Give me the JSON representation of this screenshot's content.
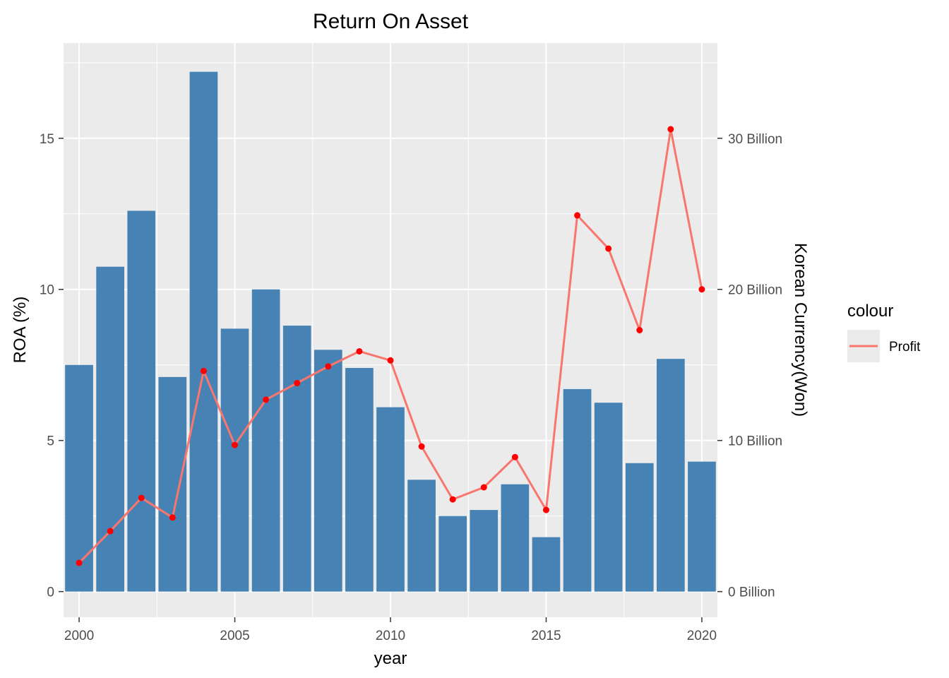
{
  "chart_data": {
    "type": "bar",
    "title": "Return On Asset",
    "xlabel": "year",
    "ylabel": "ROA (%)",
    "y2label": "Korean Currency(Won)",
    "xlim": [
      1999.5,
      2020.5
    ],
    "ylim": [
      -0.85,
      18.15
    ],
    "x_ticks": [
      2000,
      2005,
      2010,
      2015,
      2020
    ],
    "y_ticks": [
      0,
      5,
      10,
      15
    ],
    "y2_ticks": [
      0,
      10,
      20,
      30
    ],
    "y2_tick_labels": [
      "0 Billion",
      "10 Billion",
      "20 Billion",
      "30 Billion"
    ],
    "years": [
      2000,
      2001,
      2002,
      2003,
      2004,
      2005,
      2006,
      2007,
      2008,
      2009,
      2010,
      2011,
      2012,
      2013,
      2014,
      2015,
      2016,
      2017,
      2018,
      2019,
      2020
    ],
    "roa": [
      7.5,
      10.75,
      12.6,
      7.1,
      17.2,
      8.7,
      10.0,
      8.8,
      8.0,
      7.4,
      6.1,
      3.7,
      2.5,
      2.7,
      3.55,
      1.8,
      6.7,
      6.25,
      4.25,
      7.7,
      4.3
    ],
    "profit_billion_won": [
      1.9,
      4.0,
      6.2,
      4.9,
      14.6,
      9.7,
      12.7,
      13.8,
      14.9,
      15.9,
      15.3,
      9.6,
      6.1,
      6.9,
      8.9,
      5.4,
      24.9,
      22.7,
      17.3,
      30.6,
      20.0
    ],
    "bar_color": "#4682B4",
    "line_color": "#F8766D",
    "point_color": "#FF0000",
    "panel_background": "#EBEBEB",
    "grid": true,
    "legend": {
      "title": "colour",
      "entries": [
        "Profit"
      ],
      "position": "right"
    }
  }
}
